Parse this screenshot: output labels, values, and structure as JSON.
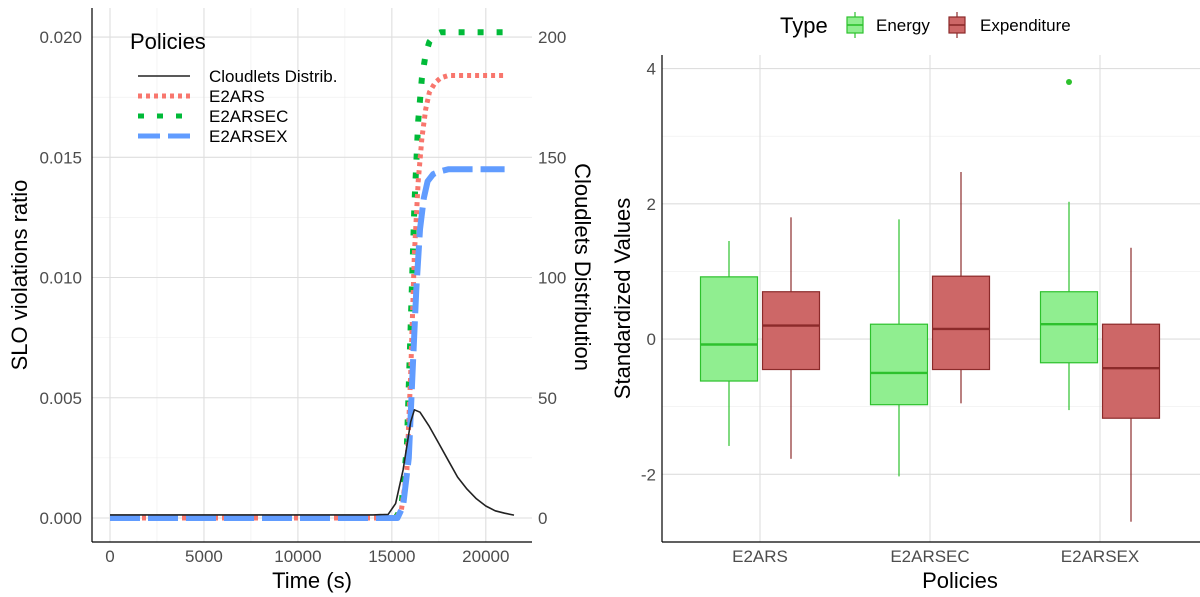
{
  "chart_data": [
    {
      "type": "line",
      "xlabel": "Time (s)",
      "ylabel": "SLO violations ratio",
      "y2label": "Cloudlets Distribution",
      "xlim": [
        0,
        21500
      ],
      "ylim": [
        0,
        0.0205
      ],
      "y2lim": [
        0,
        205
      ],
      "x_ticks": [
        "0",
        "5000",
        "10000",
        "15000",
        "20000"
      ],
      "y_ticks": [
        "0.000",
        "0.005",
        "0.010",
        "0.015",
        "0.020"
      ],
      "y2_ticks": [
        "0",
        "50",
        "100",
        "150",
        "200"
      ],
      "legend": {
        "title": "Policies",
        "placement": "top-left"
      },
      "series": [
        {
          "name": "Cloudlets Distrib.",
          "axis": "right",
          "color": "#222222",
          "x": [
            0,
            14000,
            14800,
            15200,
            15600,
            16000,
            16200,
            16500,
            17000,
            17500,
            18000,
            18500,
            19000,
            19500,
            20000,
            20500,
            21000,
            21500
          ],
          "y": [
            1.3,
            1.3,
            1.5,
            6,
            20,
            40,
            45,
            44,
            38,
            31,
            24,
            17,
            12,
            8,
            5,
            3,
            2,
            1.2
          ]
        },
        {
          "name": "E2ARS",
          "axis": "left",
          "color": "#F8766D",
          "x": [
            0,
            15200,
            15500,
            15800,
            16000,
            16200,
            16400,
            16600,
            16800,
            17000,
            17300,
            17600,
            18000,
            19000,
            20000,
            21000
          ],
          "y": [
            0,
            0,
            0.0003,
            0.002,
            0.006,
            0.011,
            0.014,
            0.0158,
            0.017,
            0.0177,
            0.0181,
            0.0183,
            0.0184,
            0.0184,
            0.0184,
            0.0184
          ]
        },
        {
          "name": "E2ARSEC",
          "axis": "left",
          "color": "#00BA38",
          "x": [
            0,
            15200,
            15500,
            15800,
            16000,
            16200,
            16400,
            16600,
            16800,
            17000,
            17300,
            17600,
            18000,
            19000,
            20000,
            21000
          ],
          "y": [
            0,
            0,
            0.0004,
            0.003,
            0.008,
            0.013,
            0.0165,
            0.0183,
            0.0193,
            0.0198,
            0.0201,
            0.0202,
            0.0202,
            0.0202,
            0.0202,
            0.0202
          ]
        },
        {
          "name": "E2ARSEX",
          "axis": "left",
          "color": "#619CFF",
          "x": [
            0,
            15300,
            15600,
            15900,
            16100,
            16300,
            16500,
            16700,
            16900,
            17200,
            17500,
            18000,
            19000,
            20000,
            21000
          ],
          "y": [
            0,
            0,
            0.0005,
            0.0025,
            0.006,
            0.0095,
            0.012,
            0.0133,
            0.014,
            0.0143,
            0.0144,
            0.0145,
            0.0145,
            0.0145,
            0.0145
          ]
        }
      ]
    },
    {
      "type": "box",
      "xlabel": "Policies",
      "ylabel": "Standardized Values",
      "categories": [
        "E2ARS",
        "E2ARSEC",
        "E2ARSEX"
      ],
      "ylim": [
        -3,
        4.2
      ],
      "y_ticks": [
        "-2",
        "0",
        "2",
        "4"
      ],
      "legend": {
        "title": "Type",
        "placement": "top"
      },
      "series": [
        {
          "name": "Energy",
          "fill": "#90EE90",
          "line": "#2DC12D",
          "boxes": [
            {
              "min": -1.58,
              "q1": -0.62,
              "median": -0.08,
              "q3": 0.92,
              "max": 1.45,
              "outliers": []
            },
            {
              "min": -2.03,
              "q1": -0.97,
              "median": -0.5,
              "q3": 0.22,
              "max": 1.77,
              "outliers": []
            },
            {
              "min": -1.05,
              "q1": -0.35,
              "median": 0.22,
              "q3": 0.7,
              "max": 2.03,
              "outliers": [
                3.8
              ]
            }
          ]
        },
        {
          "name": "Expenditure",
          "fill": "#CD6767",
          "line": "#8B2A2A",
          "boxes": [
            {
              "min": -1.77,
              "q1": -0.45,
              "median": 0.2,
              "q3": 0.7,
              "max": 1.8,
              "outliers": []
            },
            {
              "min": -0.95,
              "q1": -0.45,
              "median": 0.15,
              "q3": 0.93,
              "max": 2.47,
              "outliers": []
            },
            {
              "min": -2.7,
              "q1": -1.17,
              "median": -0.43,
              "q3": 0.22,
              "max": 1.35,
              "outliers": []
            }
          ]
        }
      ]
    }
  ]
}
